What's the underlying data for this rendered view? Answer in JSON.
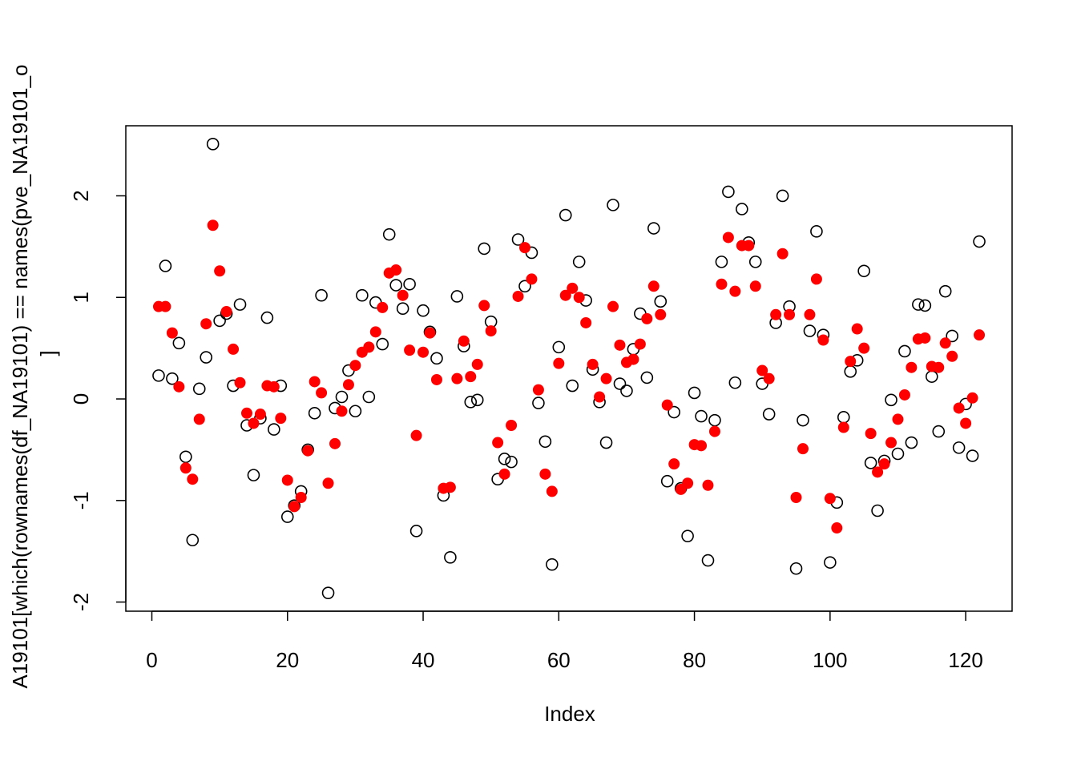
{
  "chart_data": {
    "type": "scatter",
    "xlabel": "Index",
    "ylabel": [
      "A19101[which(rownames(df_NA19101) == names(pve_NA19101_o",
      "]"
    ],
    "x": [
      1,
      2,
      3,
      4,
      5,
      6,
      7,
      8,
      9,
      10,
      11,
      12,
      13,
      14,
      15,
      16,
      17,
      18,
      19,
      20,
      21,
      22,
      23,
      24,
      25,
      26,
      27,
      28,
      29,
      30,
      31,
      32,
      33,
      34,
      35,
      36,
      37,
      38,
      39,
      40,
      41,
      42,
      43,
      44,
      45,
      46,
      47,
      48,
      49,
      50,
      51,
      52,
      53,
      54,
      55,
      56,
      57,
      58,
      59,
      60,
      61,
      62,
      63,
      64,
      65,
      66,
      67,
      68,
      69,
      70,
      71,
      72,
      73,
      74,
      75,
      76,
      77,
      78,
      79,
      80,
      81,
      82,
      83,
      84,
      85,
      86,
      87,
      88,
      89,
      90,
      91,
      92,
      93,
      94,
      95,
      96,
      97,
      98,
      99,
      100,
      101,
      102,
      103,
      104,
      105,
      106,
      107,
      108,
      109,
      110,
      111,
      112,
      113,
      114,
      115,
      116,
      117,
      118,
      119,
      120,
      121,
      122
    ],
    "series": [
      {
        "color": "#000000",
        "marker": "open",
        "values": [
          0.23,
          1.31,
          0.2,
          0.55,
          -0.57,
          -1.39,
          0.1,
          0.41,
          2.51,
          0.77,
          0.84,
          0.13,
          0.93,
          -0.26,
          -0.75,
          -0.19,
          0.8,
          -0.3,
          0.13,
          -1.16,
          -1.05,
          -0.91,
          -0.5,
          -0.14,
          1.02,
          -1.91,
          -0.09,
          0.02,
          0.28,
          -0.12,
          1.02,
          0.02,
          0.95,
          0.54,
          1.62,
          1.12,
          0.89,
          1.13,
          -1.3,
          0.87,
          0.66,
          0.4,
          -0.95,
          -1.56,
          1.01,
          0.52,
          -0.03,
          -0.01,
          1.48,
          0.76,
          -0.79,
          -0.59,
          -0.62,
          1.57,
          1.11,
          1.44,
          -0.04,
          -0.42,
          -1.63,
          0.51,
          1.81,
          0.13,
          1.35,
          0.97,
          0.29,
          -0.03,
          -0.43,
          1.91,
          0.15,
          0.08,
          0.49,
          0.84,
          0.21,
          1.68,
          0.96,
          -0.81,
          -0.13,
          -0.88,
          -1.35,
          0.06,
          -0.17,
          -1.59,
          -0.21,
          1.35,
          2.04,
          0.16,
          1.87,
          1.54,
          1.35,
          0.15,
          -0.15,
          0.75,
          2.0,
          0.91,
          -1.67,
          -0.21,
          0.67,
          1.65,
          0.63,
          -1.61,
          -1.02,
          -0.18,
          0.27,
          0.38,
          1.26,
          -0.63,
          -1.1,
          -0.61,
          -0.01,
          -0.54,
          0.47,
          -0.43,
          0.93,
          0.92,
          0.22,
          -0.32,
          1.06,
          0.62,
          -0.48,
          -0.05,
          -0.56,
          1.55
        ]
      },
      {
        "color": "#ff0000",
        "marker": "filled",
        "values": [
          0.91,
          0.91,
          0.65,
          0.12,
          -0.68,
          -0.79,
          -0.2,
          0.74,
          1.71,
          1.26,
          0.86,
          0.49,
          0.16,
          -0.14,
          -0.24,
          -0.15,
          0.13,
          0.12,
          -0.19,
          -0.8,
          -1.06,
          -0.97,
          -0.51,
          0.17,
          0.06,
          -0.83,
          -0.44,
          -0.12,
          0.14,
          0.33,
          0.46,
          0.51,
          0.66,
          0.9,
          1.24,
          1.27,
          1.02,
          0.48,
          -0.36,
          0.46,
          0.65,
          0.19,
          -0.88,
          -0.87,
          0.2,
          0.57,
          0.22,
          0.34,
          0.92,
          0.67,
          -0.43,
          -0.74,
          -0.26,
          1.01,
          1.49,
          1.18,
          0.09,
          -0.74,
          -0.91,
          0.35,
          1.02,
          1.09,
          1.0,
          0.75,
          0.34,
          0.02,
          0.2,
          0.91,
          0.53,
          0.36,
          0.39,
          0.54,
          0.79,
          1.11,
          0.83,
          -0.06,
          -0.64,
          -0.89,
          -0.83,
          -0.45,
          -0.46,
          -0.85,
          -0.32,
          1.13,
          1.59,
          1.06,
          1.51,
          1.51,
          1.11,
          0.28,
          0.2,
          0.83,
          1.43,
          0.83,
          -0.97,
          -0.49,
          0.83,
          1.18,
          0.58,
          -0.98,
          -1.27,
          -0.28,
          0.37,
          0.69,
          0.5,
          -0.34,
          -0.72,
          -0.64,
          -0.43,
          -0.2,
          0.04,
          0.31,
          0.59,
          0.6,
          0.32,
          0.31,
          0.55,
          0.42,
          -0.09,
          -0.24,
          0.01,
          0.63
        ]
      }
    ],
    "xlim": [
      -3.84,
      126.84
    ],
    "ylim": [
      -2.09,
      2.69
    ],
    "xticks": [
      0,
      20,
      40,
      60,
      80,
      100,
      120
    ],
    "yticks": [
      -2,
      -1,
      0,
      1,
      2
    ]
  }
}
